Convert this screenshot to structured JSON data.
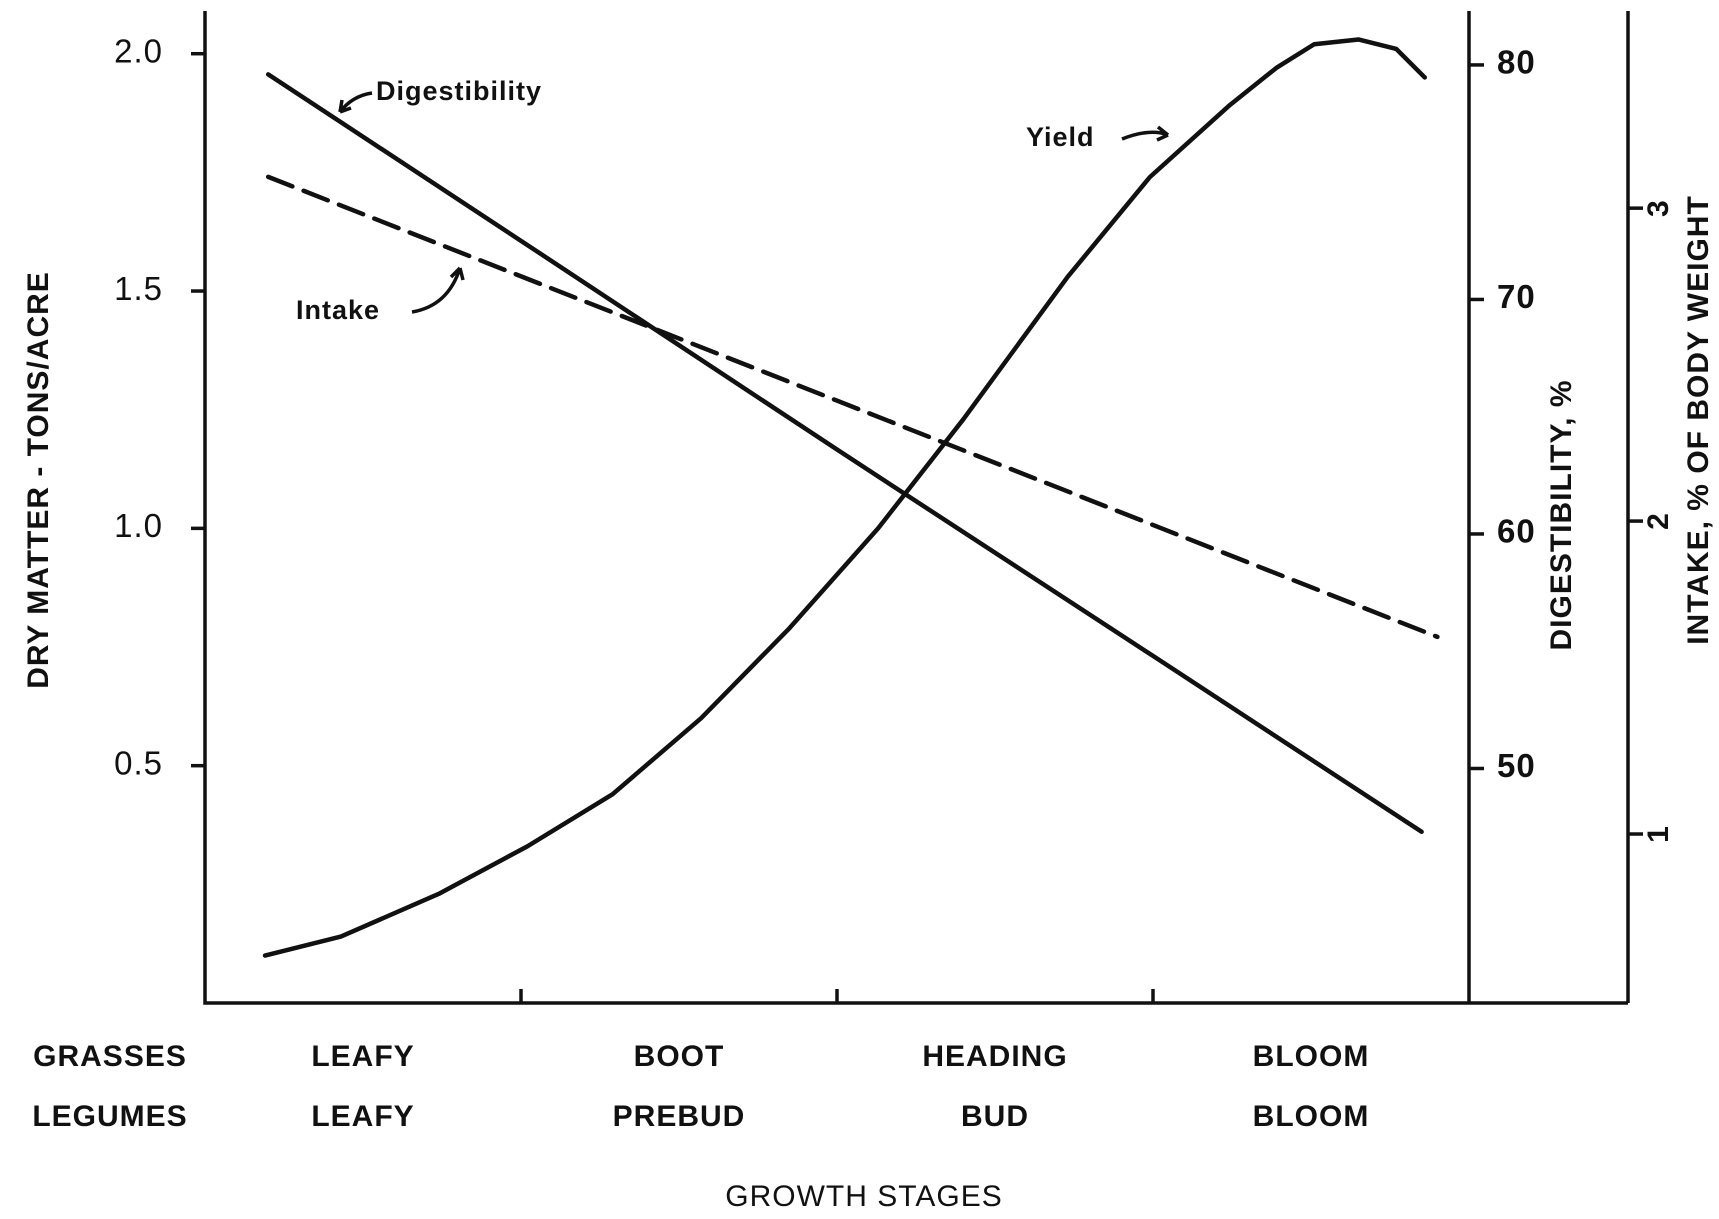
{
  "chart_data": {
    "type": "line",
    "y_label": "DRY MATTER - TONS/ACRE",
    "y2_label": "DIGESTIBILITY, %",
    "y3_label": "INTAKE, % OF BODY WEIGHT",
    "x_label": "GROWTH STAGES",
    "x_rows": [
      {
        "label": "GRASSES",
        "categories": [
          "LEAFY",
          "BOOT",
          "HEADING",
          "BLOOM"
        ]
      },
      {
        "label": "LEGUMES",
        "categories": [
          "LEAFY",
          "PREBUD",
          "BUD",
          "BLOOM"
        ]
      }
    ],
    "xlim": [
      0,
      4
    ],
    "ylim": [
      0,
      2.09
    ],
    "yticks": [
      0.5,
      {
        "value": 1,
        "label": "1.0"
      },
      1.5,
      {
        "value": 2,
        "label": "2.0"
      }
    ],
    "y2lim": [
      40,
      82.3
    ],
    "y2ticks": [
      50,
      60,
      70,
      80
    ],
    "y3lim": [
      0.46,
      3.63
    ],
    "y3ticks": [
      1,
      2,
      3
    ],
    "color": "#111111",
    "series": [
      {
        "name": "Digestibility",
        "axis": "y2",
        "style": "solid",
        "color": "#111111",
        "x": [
          0.2,
          1,
          2,
          3,
          3.85
        ],
        "values": [
          79.6,
          72.5,
          63.6,
          54.8,
          47.3
        ]
      },
      {
        "name": "Intake",
        "axis": "y3",
        "style": "dashed",
        "color": "#111111",
        "x": [
          0.2,
          3.9
        ],
        "values": [
          3.1,
          1.63
        ]
      },
      {
        "name": "Yield",
        "axis": "y",
        "style": "solid",
        "color": "#111111",
        "x": [
          0.19,
          0.43,
          0.74,
          1.02,
          1.29,
          1.57,
          1.85,
          2.13,
          2.4,
          2.73,
          2.99,
          3.24,
          3.39,
          3.51,
          3.65,
          3.77,
          3.86
        ],
        "values": [
          0.1,
          0.14,
          0.23,
          0.33,
          0.44,
          0.6,
          0.79,
          1.0,
          1.23,
          1.53,
          1.74,
          1.89,
          1.97,
          2.02,
          2.03,
          2.01,
          1.95
        ]
      }
    ]
  }
}
